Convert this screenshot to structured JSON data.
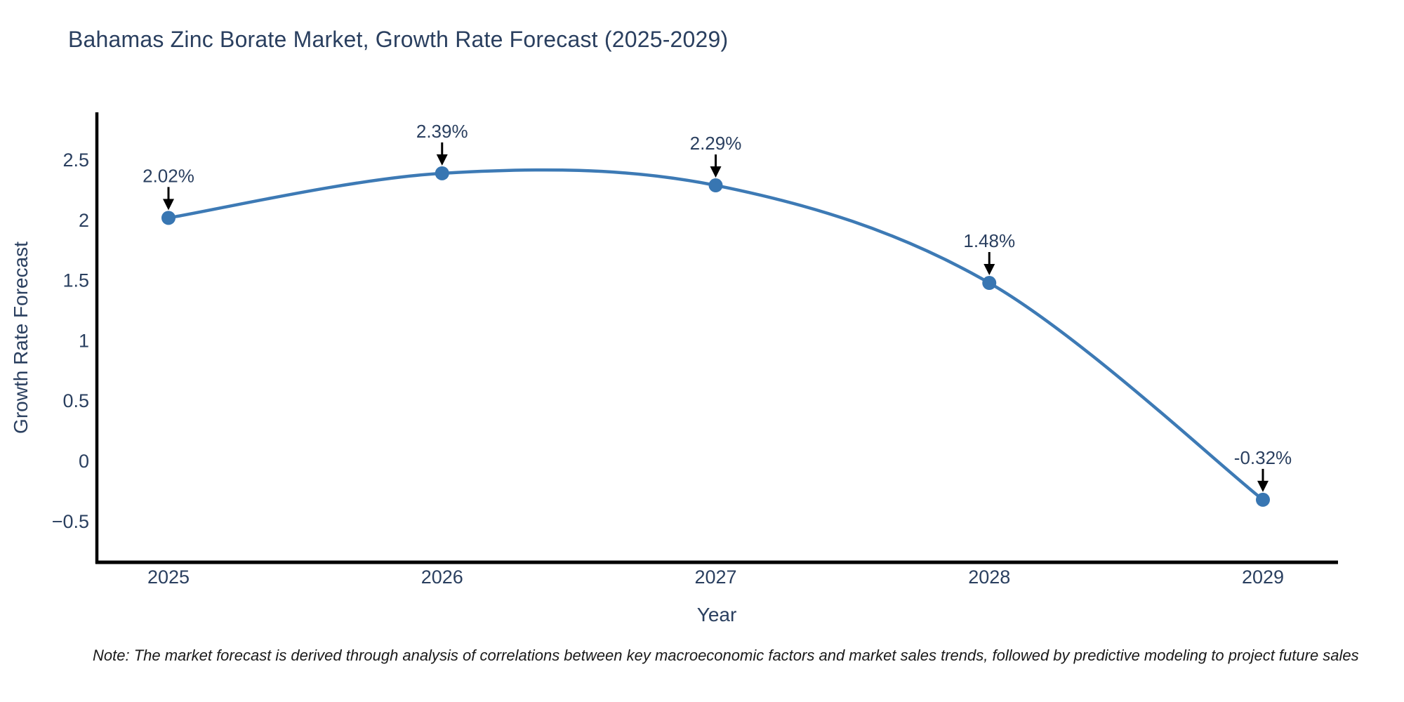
{
  "title": "Bahamas Zinc Borate Market, Growth Rate Forecast (2025-2029)",
  "note": "Note: The market forecast is derived through analysis of correlations between key macroeconomic factors and market sales trends, followed by predictive modeling to project future sales",
  "colors": {
    "line": "#3d7ab5",
    "marker": "#3876b2",
    "axis": "#000000",
    "title_text": "#2a3f5f",
    "tick_text": "#2a3f5f",
    "annotation_arrow": "#000000"
  },
  "chart_data": {
    "type": "line",
    "title": "Bahamas Zinc Borate Market, Growth Rate Forecast (2025-2029)",
    "xlabel": "Year",
    "ylabel": "Growth Rate Forecast",
    "x": [
      2025,
      2026,
      2027,
      2028,
      2029
    ],
    "values": [
      2.02,
      2.39,
      2.29,
      1.48,
      -0.32
    ],
    "point_labels": [
      "2.02%",
      "2.39%",
      "2.29%",
      "1.48%",
      "-0.32%"
    ],
    "xtick_labels": [
      "2025",
      "2026",
      "2027",
      "2028",
      "2029"
    ],
    "yticks": [
      2.5,
      2,
      1.5,
      1,
      0.5,
      0,
      -0.5
    ],
    "ytick_labels": [
      "2.5",
      "2",
      "1.5",
      "1",
      "0.5",
      "0",
      "−0.5"
    ],
    "ylim": [
      -0.85,
      2.9
    ],
    "line_shape": "spline",
    "grid": false,
    "legend": false,
    "annotations": "arrow-down-to-each-point"
  }
}
